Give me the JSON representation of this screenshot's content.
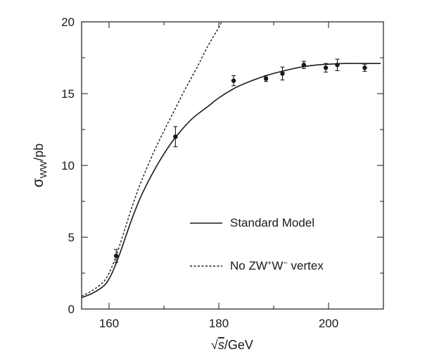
{
  "chart_data": {
    "type": "line",
    "xlabel_radical": "√",
    "xlabel_var": "s",
    "xlabel_unit": "/GeV",
    "ylabel_sym": "σ",
    "ylabel_sub": "WW",
    "ylabel_unit": "/pb",
    "xlim": [
      155,
      210
    ],
    "ylim": [
      0,
      20
    ],
    "xticks_major": [
      160,
      180,
      200
    ],
    "xticks_minor": [
      170,
      190
    ],
    "yticks_major": [
      0,
      5,
      10,
      15,
      20
    ],
    "yticks_minor": [
      2.5,
      7.5,
      12.5,
      17.5
    ],
    "grid": false,
    "legend_position": "lower-right",
    "series": [
      {
        "name": "Standard Model",
        "style": "solid",
        "x": [
          155,
          157,
          159,
          160,
          161,
          162,
          163,
          164,
          165,
          166,
          168,
          170,
          172,
          175,
          178,
          180,
          183,
          186,
          189,
          192,
          195,
          198,
          200,
          203,
          206,
          209.5
        ],
        "y": [
          0.8,
          1.1,
          1.6,
          2.1,
          2.9,
          3.9,
          5.0,
          6.1,
          7.1,
          8.0,
          9.5,
          10.8,
          11.9,
          13.2,
          14.1,
          14.7,
          15.4,
          15.9,
          16.3,
          16.6,
          16.85,
          17.0,
          17.05,
          17.1,
          17.1,
          17.1
        ]
      },
      {
        "name": "No ZW⁺W⁻ vertex",
        "style": "dashed",
        "x": [
          155,
          157,
          159,
          160,
          161,
          162,
          163,
          164,
          165,
          166,
          168,
          170,
          172,
          174,
          176,
          178,
          180,
          180.5
        ],
        "y": [
          0.9,
          1.3,
          1.9,
          2.5,
          3.4,
          4.5,
          5.7,
          6.9,
          8.0,
          9.0,
          10.8,
          12.4,
          13.9,
          15.4,
          16.8,
          18.3,
          19.6,
          20.0
        ]
      }
    ],
    "data_points": {
      "x": [
        161.3,
        172.1,
        182.7,
        188.6,
        191.6,
        195.5,
        199.5,
        201.6,
        206.6
      ],
      "y": [
        3.7,
        12.0,
        15.9,
        16.05,
        16.4,
        17.0,
        16.8,
        17.0,
        16.8
      ],
      "yerr": [
        0.45,
        0.7,
        0.35,
        0.2,
        0.45,
        0.25,
        0.3,
        0.4,
        0.25
      ]
    },
    "legend": {
      "standard_model": "Standard Model",
      "no_vertex_prefix": "No ZW",
      "no_vertex_sup1": "+",
      "no_vertex_mid": "W",
      "no_vertex_sup2": "−",
      "no_vertex_suffix": " vertex"
    },
    "colors": {
      "line": "#1a1a1a"
    }
  }
}
